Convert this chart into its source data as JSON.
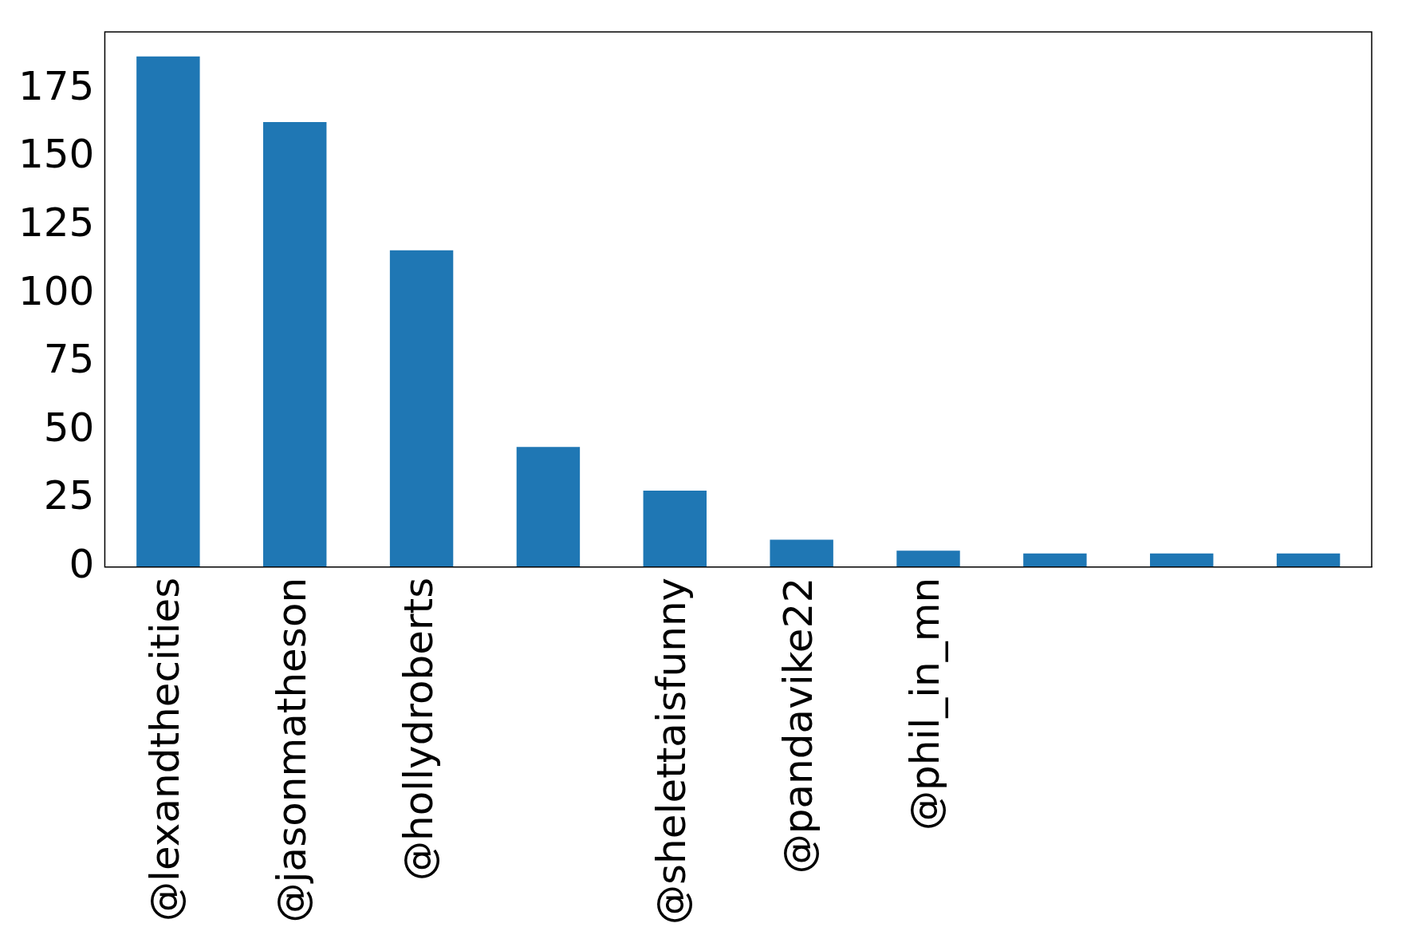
{
  "chart_data": {
    "type": "bar",
    "categories": [
      "@lexandthecities",
      "@jasonmatheson",
      "@hollydroberts",
      null,
      "@shelettaisfunny",
      "@pandavike22",
      "@phil_in_mn",
      null,
      null,
      null
    ],
    "values": [
      187,
      163,
      116,
      44,
      28,
      10,
      6,
      5,
      5,
      5
    ],
    "color": "#1f77b4",
    "ylim": [
      0,
      196
    ],
    "yticks": [
      0,
      25,
      50,
      75,
      100,
      125,
      150,
      175
    ],
    "grid": false,
    "legend": false
  }
}
